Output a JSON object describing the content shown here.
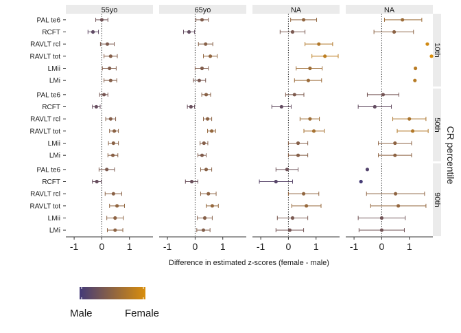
{
  "chart_data": {
    "type": "forest",
    "xlabel": "Difference in estimated z-scores (female - male)",
    "ylabel": "CR percentile",
    "columns": [
      "55yo",
      "65yo",
      "NA",
      "NA"
    ],
    "rows": [
      "10th",
      "50th",
      "90th"
    ],
    "tests": [
      "PAL te6",
      "RCFT",
      "RAVLT rcl",
      "RAVLT tot",
      "LMii",
      "LMi"
    ],
    "xticks": [
      -1,
      0,
      1
    ],
    "xlim": [
      -1.3,
      1.85
    ],
    "color_scale": {
      "low": "#433a78",
      "high": "#d98e0c",
      "domain": [
        -0.8,
        1.8
      ]
    },
    "legend": {
      "low_label": "Male",
      "high_label": "Female"
    },
    "panels": [
      [
        [
          {
            "est": 0,
            "lo": -0.22,
            "hi": 0.22
          },
          {
            "est": -0.32,
            "lo": -0.5,
            "hi": -0.12
          },
          {
            "est": 0.2,
            "lo": -0.05,
            "hi": 0.45
          },
          {
            "est": 0.32,
            "lo": 0.08,
            "hi": 0.56
          },
          {
            "est": 0.28,
            "lo": 0.02,
            "hi": 0.52
          },
          {
            "est": 0.32,
            "lo": 0.08,
            "hi": 0.54
          }
        ],
        [
          {
            "est": 0.25,
            "lo": 0.03,
            "hi": 0.48
          },
          {
            "est": -0.22,
            "lo": -0.42,
            "hi": -0.02
          },
          {
            "est": 0.38,
            "lo": 0.12,
            "hi": 0.64
          },
          {
            "est": 0.55,
            "lo": 0.3,
            "hi": 0.8
          },
          {
            "est": 0.25,
            "lo": 0.0,
            "hi": 0.48
          },
          {
            "est": 0.15,
            "lo": -0.06,
            "hi": 0.38
          }
        ],
        [
          {
            "est": 0.55,
            "lo": 0.08,
            "hi": 1.02
          },
          {
            "est": 0.15,
            "lo": -0.3,
            "hi": 0.6
          },
          {
            "est": 1.1,
            "lo": 0.6,
            "hi": 1.6
          },
          {
            "est": 1.32,
            "lo": 0.85,
            "hi": 1.8
          },
          {
            "est": 0.78,
            "lo": 0.28,
            "hi": 1.22
          },
          {
            "est": 0.72,
            "lo": 0.22,
            "hi": 1.2
          }
        ],
        [
          {
            "est": 0.75,
            "lo": 0.1,
            "hi": 1.45
          },
          {
            "est": 0.45,
            "lo": -0.28,
            "hi": 1.15
          },
          {
            "est": 1.65,
            "lo": null,
            "hi": null
          },
          {
            "est": 1.8,
            "lo": null,
            "hi": null
          },
          {
            "est": 1.22,
            "lo": null,
            "hi": null
          },
          {
            "est": 1.2,
            "lo": null,
            "hi": null
          }
        ]
      ],
      [
        [
          {
            "est": 0.08,
            "lo": -0.08,
            "hi": 0.22
          },
          {
            "est": -0.2,
            "lo": -0.34,
            "hi": -0.06
          },
          {
            "est": 0.32,
            "lo": 0.14,
            "hi": 0.5
          },
          {
            "est": 0.45,
            "lo": 0.28,
            "hi": 0.6
          },
          {
            "est": 0.42,
            "lo": 0.24,
            "hi": 0.6
          },
          {
            "est": 0.4,
            "lo": 0.22,
            "hi": 0.58
          }
        ],
        [
          {
            "est": 0.4,
            "lo": 0.24,
            "hi": 0.56
          },
          {
            "est": -0.15,
            "lo": -0.28,
            "hi": -0.02
          },
          {
            "est": 0.45,
            "lo": 0.3,
            "hi": 0.6
          },
          {
            "est": 0.6,
            "lo": 0.45,
            "hi": 0.74
          },
          {
            "est": 0.32,
            "lo": 0.18,
            "hi": 0.46
          },
          {
            "est": 0.25,
            "lo": 0.1,
            "hi": 0.4
          }
        ],
        [
          {
            "est": 0.22,
            "lo": -0.1,
            "hi": 0.56
          },
          {
            "est": -0.25,
            "lo": -0.6,
            "hi": 0.1
          },
          {
            "est": 0.78,
            "lo": 0.42,
            "hi": 1.12
          },
          {
            "est": 0.92,
            "lo": 0.56,
            "hi": 1.3
          },
          {
            "est": 0.35,
            "lo": 0.0,
            "hi": 0.7
          },
          {
            "est": 0.35,
            "lo": 0.0,
            "hi": 0.7
          }
        ],
        [
          {
            "est": 0.05,
            "lo": -0.52,
            "hi": 0.62
          },
          {
            "est": -0.25,
            "lo": -0.85,
            "hi": 0.35
          },
          {
            "est": 1.0,
            "lo": 0.4,
            "hi": 1.6
          },
          {
            "est": 1.12,
            "lo": 0.56,
            "hi": 1.68
          },
          {
            "est": 0.48,
            "lo": -0.12,
            "hi": 1.08
          },
          {
            "est": 0.48,
            "lo": -0.12,
            "hi": 1.08
          }
        ]
      ],
      [
        [
          {
            "est": 0.18,
            "lo": -0.1,
            "hi": 0.46
          },
          {
            "est": -0.18,
            "lo": -0.34,
            "hi": -0.02
          },
          {
            "est": 0.42,
            "lo": 0.12,
            "hi": 0.72
          },
          {
            "est": 0.55,
            "lo": 0.28,
            "hi": 0.82
          },
          {
            "est": 0.48,
            "lo": 0.18,
            "hi": 0.78
          },
          {
            "est": 0.48,
            "lo": 0.2,
            "hi": 0.76
          }
        ],
        [
          {
            "est": 0.4,
            "lo": 0.2,
            "hi": 0.6
          },
          {
            "est": -0.12,
            "lo": -0.35,
            "hi": 0.1
          },
          {
            "est": 0.48,
            "lo": 0.2,
            "hi": 0.76
          },
          {
            "est": 0.62,
            "lo": 0.4,
            "hi": 0.84
          },
          {
            "est": 0.35,
            "lo": 0.08,
            "hi": 0.62
          },
          {
            "est": 0.3,
            "lo": 0.06,
            "hi": 0.54
          }
        ],
        [
          {
            "est": -0.05,
            "lo": -0.45,
            "hi": 0.35
          },
          {
            "est": -0.45,
            "lo": -1.05,
            "hi": 0.15
          },
          {
            "est": 0.55,
            "lo": 0.0,
            "hi": 1.1
          },
          {
            "est": 0.65,
            "lo": 0.12,
            "hi": 1.18
          },
          {
            "est": 0.15,
            "lo": -0.4,
            "hi": 0.7
          },
          {
            "est": 0.05,
            "lo": -0.45,
            "hi": 0.55
          }
        ],
        [
          {
            "est": -0.52,
            "lo": null,
            "hi": null
          },
          {
            "est": -0.75,
            "lo": null,
            "hi": null
          },
          {
            "est": 0.5,
            "lo": -0.55,
            "hi": 1.55
          },
          {
            "est": 0.6,
            "lo": -0.4,
            "hi": 1.6
          },
          {
            "est": 0.0,
            "lo": -0.85,
            "hi": 0.85
          },
          {
            "est": 0.0,
            "lo": -0.82,
            "hi": 0.82
          }
        ]
      ]
    ]
  }
}
